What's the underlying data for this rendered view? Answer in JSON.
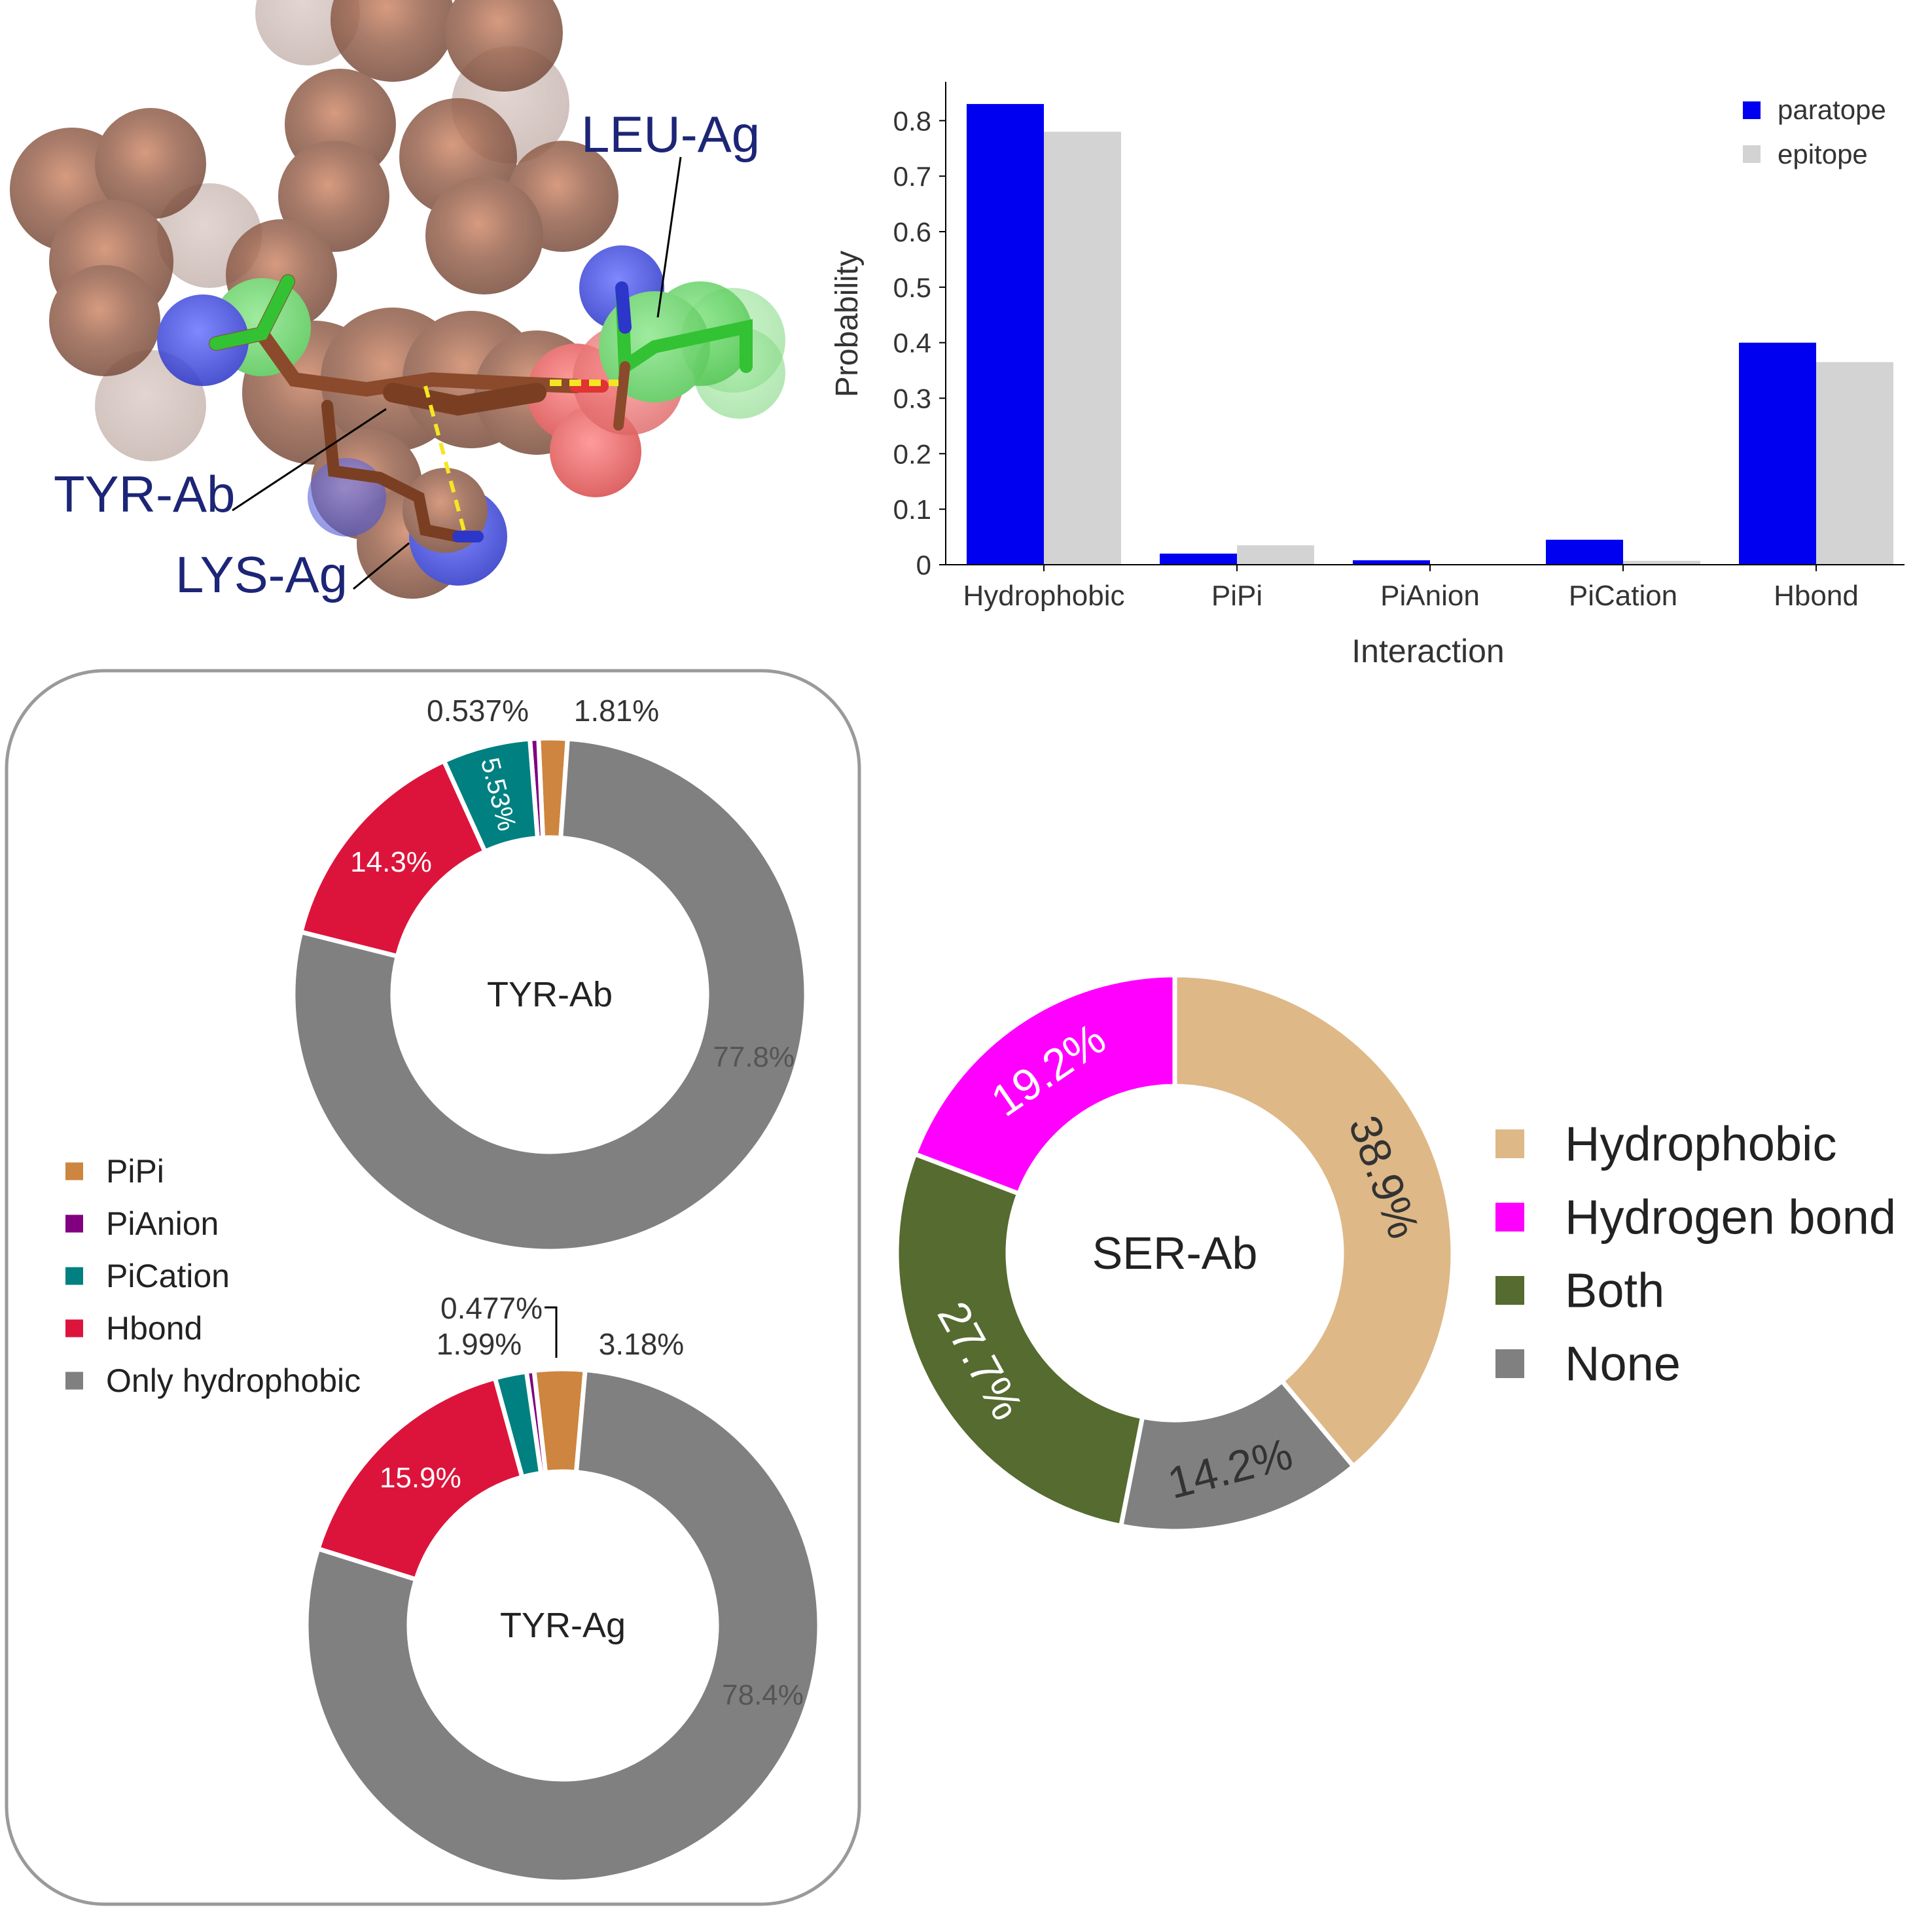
{
  "molecule": {
    "labels": [
      "LEU-Ag",
      "TYR-Ab",
      "LYS-Ag"
    ],
    "colors": {
      "atom": "#8b5a44",
      "nitrogen": "#3340dd",
      "carbon_green": "#33c233",
      "oxygen": "#e03333",
      "label": "#1c2576",
      "dash": "#f5e623"
    }
  },
  "chart_data": [
    {
      "type": "bar",
      "xlabel": "Interaction",
      "ylabel": "Probability",
      "categories": [
        "Hydrophobic",
        "PiPi",
        "PiAnion",
        "PiCation",
        "Hbond"
      ],
      "ylim": [
        0,
        0.87
      ],
      "yticks": [
        "0",
        "0.1",
        "0.2",
        "0.3",
        "0.4",
        "0.5",
        "0.6",
        "0.7",
        "0.8"
      ],
      "legend_position": "top-right",
      "grid": false,
      "series": [
        {
          "name": "paratope",
          "color": "#0000f0",
          "values": [
            0.83,
            0.02,
            0.008,
            0.045,
            0.4
          ]
        },
        {
          "name": "epitope",
          "color": "#d3d3d3",
          "values": [
            0.78,
            0.035,
            0.001,
            0.007,
            0.365
          ]
        }
      ]
    },
    {
      "type": "pie",
      "center_label": "TYR-Ab",
      "slices": [
        {
          "name": "PiPi",
          "value": 1.81,
          "label": "1.81%",
          "color": "#cd853f"
        },
        {
          "name": "PiAnion",
          "value": 0.537,
          "label": "0.537%",
          "color": "#800080"
        },
        {
          "name": "PiCation",
          "value": 5.53,
          "label": "5.53%",
          "color": "#008080"
        },
        {
          "name": "Hbond",
          "value": 14.3,
          "label": "14.3%",
          "color": "#dc143c"
        },
        {
          "name": "Only hydrophobic",
          "value": 77.8,
          "label": "77.8%",
          "color": "#808080"
        }
      ]
    },
    {
      "type": "pie",
      "center_label": "TYR-Ag",
      "slices": [
        {
          "name": "PiPi",
          "value": 3.18,
          "label": "3.18%",
          "color": "#cd853f"
        },
        {
          "name": "PiAnion",
          "value": 0.477,
          "label": "0.477%",
          "color": "#800080"
        },
        {
          "name": "PiCation",
          "value": 1.99,
          "label": "1.99%",
          "color": "#008080"
        },
        {
          "name": "Hbond",
          "value": 15.9,
          "label": "15.9%",
          "color": "#dc143c"
        },
        {
          "name": "Only hydrophobic",
          "value": 78.4,
          "label": "78.4%",
          "color": "#808080"
        }
      ]
    },
    {
      "type": "pie",
      "center_label": "SER-Ab",
      "slices": [
        {
          "name": "Hydrophobic",
          "value": 38.9,
          "label": "38.9%",
          "color": "#deb887"
        },
        {
          "name": "None",
          "value": 14.2,
          "label": "14.2%",
          "color": "#808080"
        },
        {
          "name": "Both",
          "value": 27.7,
          "label": "27.7%",
          "color": "#556b2f"
        },
        {
          "name": "Hydrogen bond",
          "value": 19.2,
          "label": "19.2%",
          "color": "#ff00ff"
        }
      ]
    }
  ],
  "legends": {
    "tyr": [
      {
        "name": "PiPi",
        "color": "#cd853f"
      },
      {
        "name": "PiAnion",
        "color": "#800080"
      },
      {
        "name": "PiCation",
        "color": "#008080"
      },
      {
        "name": "Hbond",
        "color": "#dc143c"
      },
      {
        "name": "Only hydrophobic",
        "color": "#808080"
      }
    ],
    "ser": [
      {
        "name": "Hydrophobic",
        "color": "#deb887"
      },
      {
        "name": "Hydrogen bond",
        "color": "#ff00ff"
      },
      {
        "name": "Both",
        "color": "#556b2f"
      },
      {
        "name": "None",
        "color": "#808080"
      }
    ]
  }
}
